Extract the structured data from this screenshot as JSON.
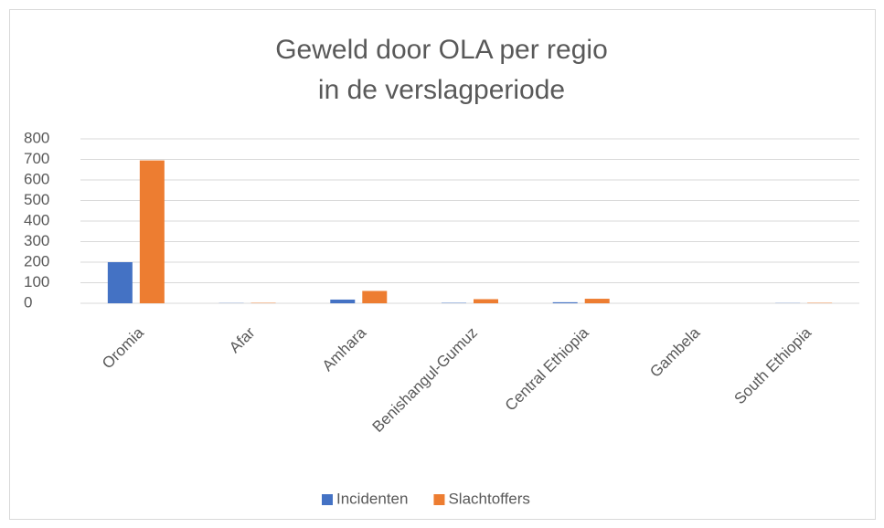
{
  "chart_data": {
    "type": "bar",
    "title": [
      "Geweld door OLA per regio",
      "in de verslagperiode"
    ],
    "categories": [
      "Oromia",
      "Afar",
      "Amhara",
      "Benishangul-Gumuz",
      "Central Ethiopia",
      "Gambela",
      "South Ethiopia"
    ],
    "series": [
      {
        "name": "Incidenten",
        "color": "#4472c4",
        "values": [
          200,
          1,
          18,
          2,
          5,
          0,
          1
        ]
      },
      {
        "name": "Slachtoffers",
        "color": "#ed7d31",
        "values": [
          695,
          2,
          60,
          20,
          22,
          0,
          2
        ]
      }
    ],
    "ylim": [
      0,
      800
    ],
    "yticks": [
      0,
      100,
      200,
      300,
      400,
      500,
      600,
      700,
      800
    ],
    "grid": true,
    "legend": "bottom"
  }
}
